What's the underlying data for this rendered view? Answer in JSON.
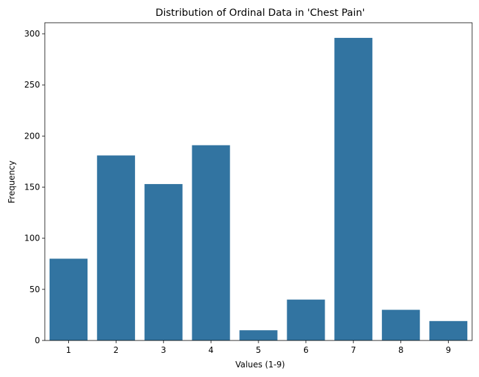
{
  "chart_data": {
    "type": "bar",
    "title": "Distribution of Ordinal Data in 'Chest Pain'",
    "xlabel": "Values (1-9)",
    "ylabel": "Frequency",
    "categories": [
      "1",
      "2",
      "3",
      "4",
      "5",
      "6",
      "7",
      "8",
      "9"
    ],
    "values": [
      80,
      181,
      153,
      191,
      10,
      40,
      296,
      30,
      19
    ],
    "ylim": [
      0,
      310.8
    ],
    "yticks": [
      0,
      50,
      100,
      150,
      200,
      250,
      300
    ],
    "grid": false,
    "legend": "none",
    "bar_color": "#3274a1"
  }
}
